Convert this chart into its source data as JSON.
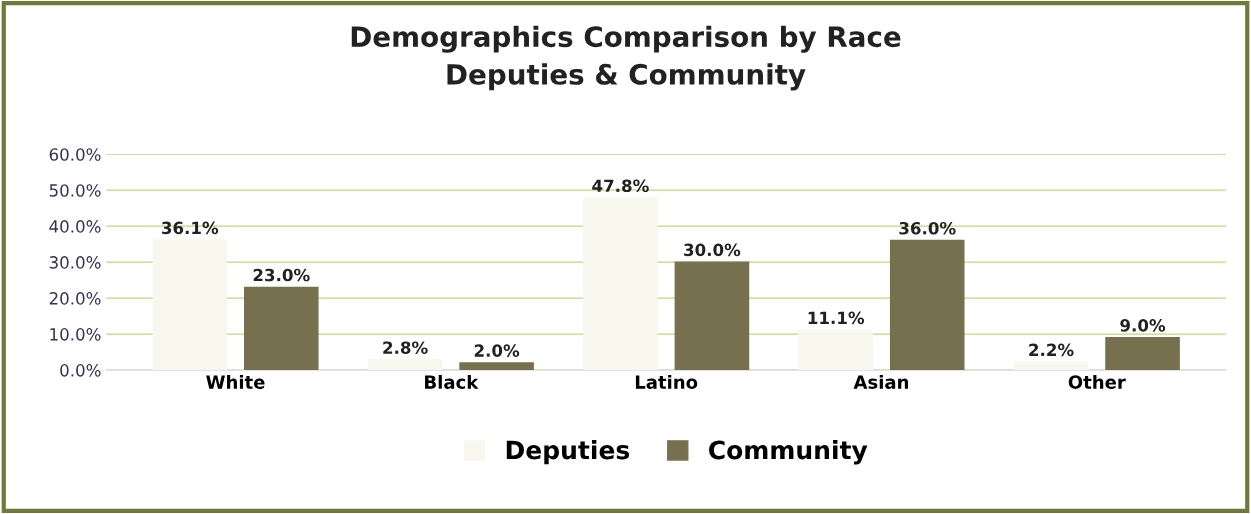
{
  "chart_data": {
    "type": "bar",
    "title": "Demographics Comparison by Race\nDeputies & Community",
    "categories": [
      "White",
      "Black",
      "Latino",
      "Asian",
      "Other"
    ],
    "series": [
      {
        "name": "Deputies",
        "color": "#f7f7ee",
        "values": [
          36.1,
          2.8,
          47.8,
          11.1,
          2.2
        ],
        "value_labels": [
          "36.1%",
          "2.8%",
          "47.8%",
          "11.1%",
          "2.2%"
        ]
      },
      {
        "name": "Community",
        "color": "#77704f",
        "values": [
          23.0,
          2.0,
          30.0,
          36.0,
          9.0
        ],
        "value_labels": [
          "23.0%",
          "2.0%",
          "30.0%",
          "36.0%",
          "9.0%"
        ]
      }
    ],
    "ylim": [
      0,
      60
    ],
    "yticks": [
      {
        "value": 0,
        "label": "0.0%"
      },
      {
        "value": 10,
        "label": "10.0%"
      },
      {
        "value": 20,
        "label": "20.0%"
      },
      {
        "value": 30,
        "label": "30.0%"
      },
      {
        "value": 40,
        "label": "40.0%"
      },
      {
        "value": 50,
        "label": "50.0%"
      },
      {
        "value": 60,
        "label": "60.0%"
      }
    ],
    "grid": "y",
    "legend": "bottom"
  }
}
